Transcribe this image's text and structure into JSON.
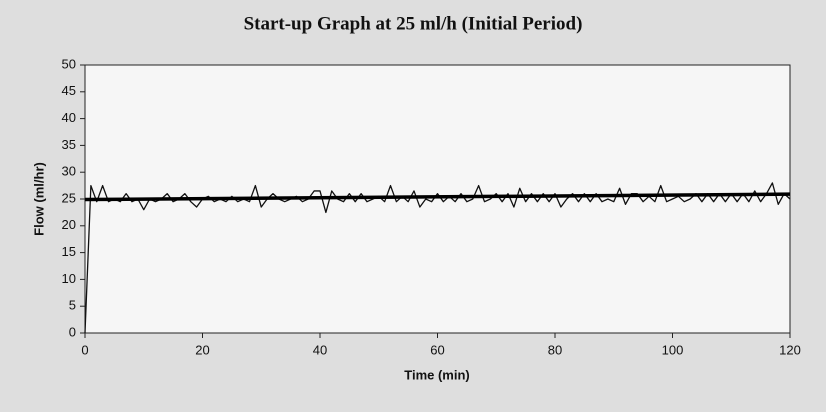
{
  "chart_data": {
    "type": "line",
    "title": "Start-up Graph at 25 ml/h (Initial Period)",
    "x_label": "Time (min)",
    "y_label": "Flow (ml/hr)",
    "xlim": [
      0,
      120
    ],
    "xticks": [
      0,
      20,
      40,
      60,
      80,
      100,
      120
    ],
    "ylim": [
      0,
      50
    ],
    "yticks": [
      0,
      5,
      10,
      15,
      20,
      25,
      30,
      35,
      40,
      45,
      50
    ],
    "series": [
      {
        "color": "#111111",
        "width": 1.3,
        "x": [
          0,
          1,
          2,
          3,
          4,
          5,
          6,
          7,
          8,
          9,
          10,
          11,
          12,
          13,
          14,
          15,
          16,
          17,
          18,
          19,
          20,
          21,
          22,
          23,
          24,
          25,
          26,
          27,
          28,
          29,
          30,
          31,
          32,
          33,
          34,
          35,
          36,
          37,
          38,
          39,
          40,
          41,
          42,
          43,
          44,
          45,
          46,
          47,
          48,
          49,
          50,
          51,
          52,
          53,
          54,
          55,
          56,
          57,
          58,
          59,
          60,
          61,
          62,
          63,
          64,
          65,
          66,
          67,
          68,
          69,
          70,
          71,
          72,
          73,
          74,
          75,
          76,
          77,
          78,
          79,
          80,
          81,
          82,
          83,
          84,
          85,
          86,
          87,
          88,
          89,
          90,
          91,
          92,
          93,
          94,
          95,
          96,
          97,
          98,
          99,
          100,
          101,
          102,
          103,
          104,
          105,
          106,
          107,
          108,
          109,
          110,
          111,
          112,
          113,
          114,
          115,
          116,
          117,
          118,
          119,
          120
        ],
        "values": [
          0,
          27.5,
          24.5,
          27.5,
          24.5,
          25,
          24.5,
          26,
          24.5,
          25,
          23,
          25,
          24.5,
          25,
          26,
          24.5,
          25,
          26,
          24.5,
          23.5,
          25,
          25.5,
          24.5,
          25,
          24.5,
          25.5,
          24.5,
          25,
          24.5,
          27.5,
          23.5,
          25,
          26,
          25,
          24.5,
          25,
          25.5,
          24.5,
          25,
          26.5,
          26.5,
          22.5,
          26.5,
          25,
          24.5,
          26,
          24.5,
          26,
          24.5,
          25,
          25.5,
          24.5,
          27.5,
          24.5,
          25.5,
          24.5,
          26.5,
          23.5,
          25,
          24.5,
          26,
          24.5,
          25.5,
          24.5,
          26,
          24.5,
          25,
          27.5,
          24.5,
          25,
          26,
          24.5,
          26,
          23.5,
          27,
          24.5,
          26,
          24.5,
          26,
          24.5,
          26,
          23.5,
          25,
          26,
          24.5,
          26,
          24.5,
          26,
          24.5,
          25,
          24.5,
          27,
          24,
          26,
          26,
          24.5,
          25.5,
          24.5,
          27.5,
          24.5,
          25,
          25.5,
          24.5,
          25,
          26,
          24.5,
          26,
          24.5,
          26,
          24.5,
          26,
          24.5,
          26,
          24.5,
          26.5,
          24.5,
          26,
          28,
          24,
          26,
          25
        ]
      },
      {
        "color": "#000000",
        "width": 3.5,
        "x": [
          0,
          120
        ],
        "values": [
          24.9,
          25.9
        ]
      }
    ]
  }
}
